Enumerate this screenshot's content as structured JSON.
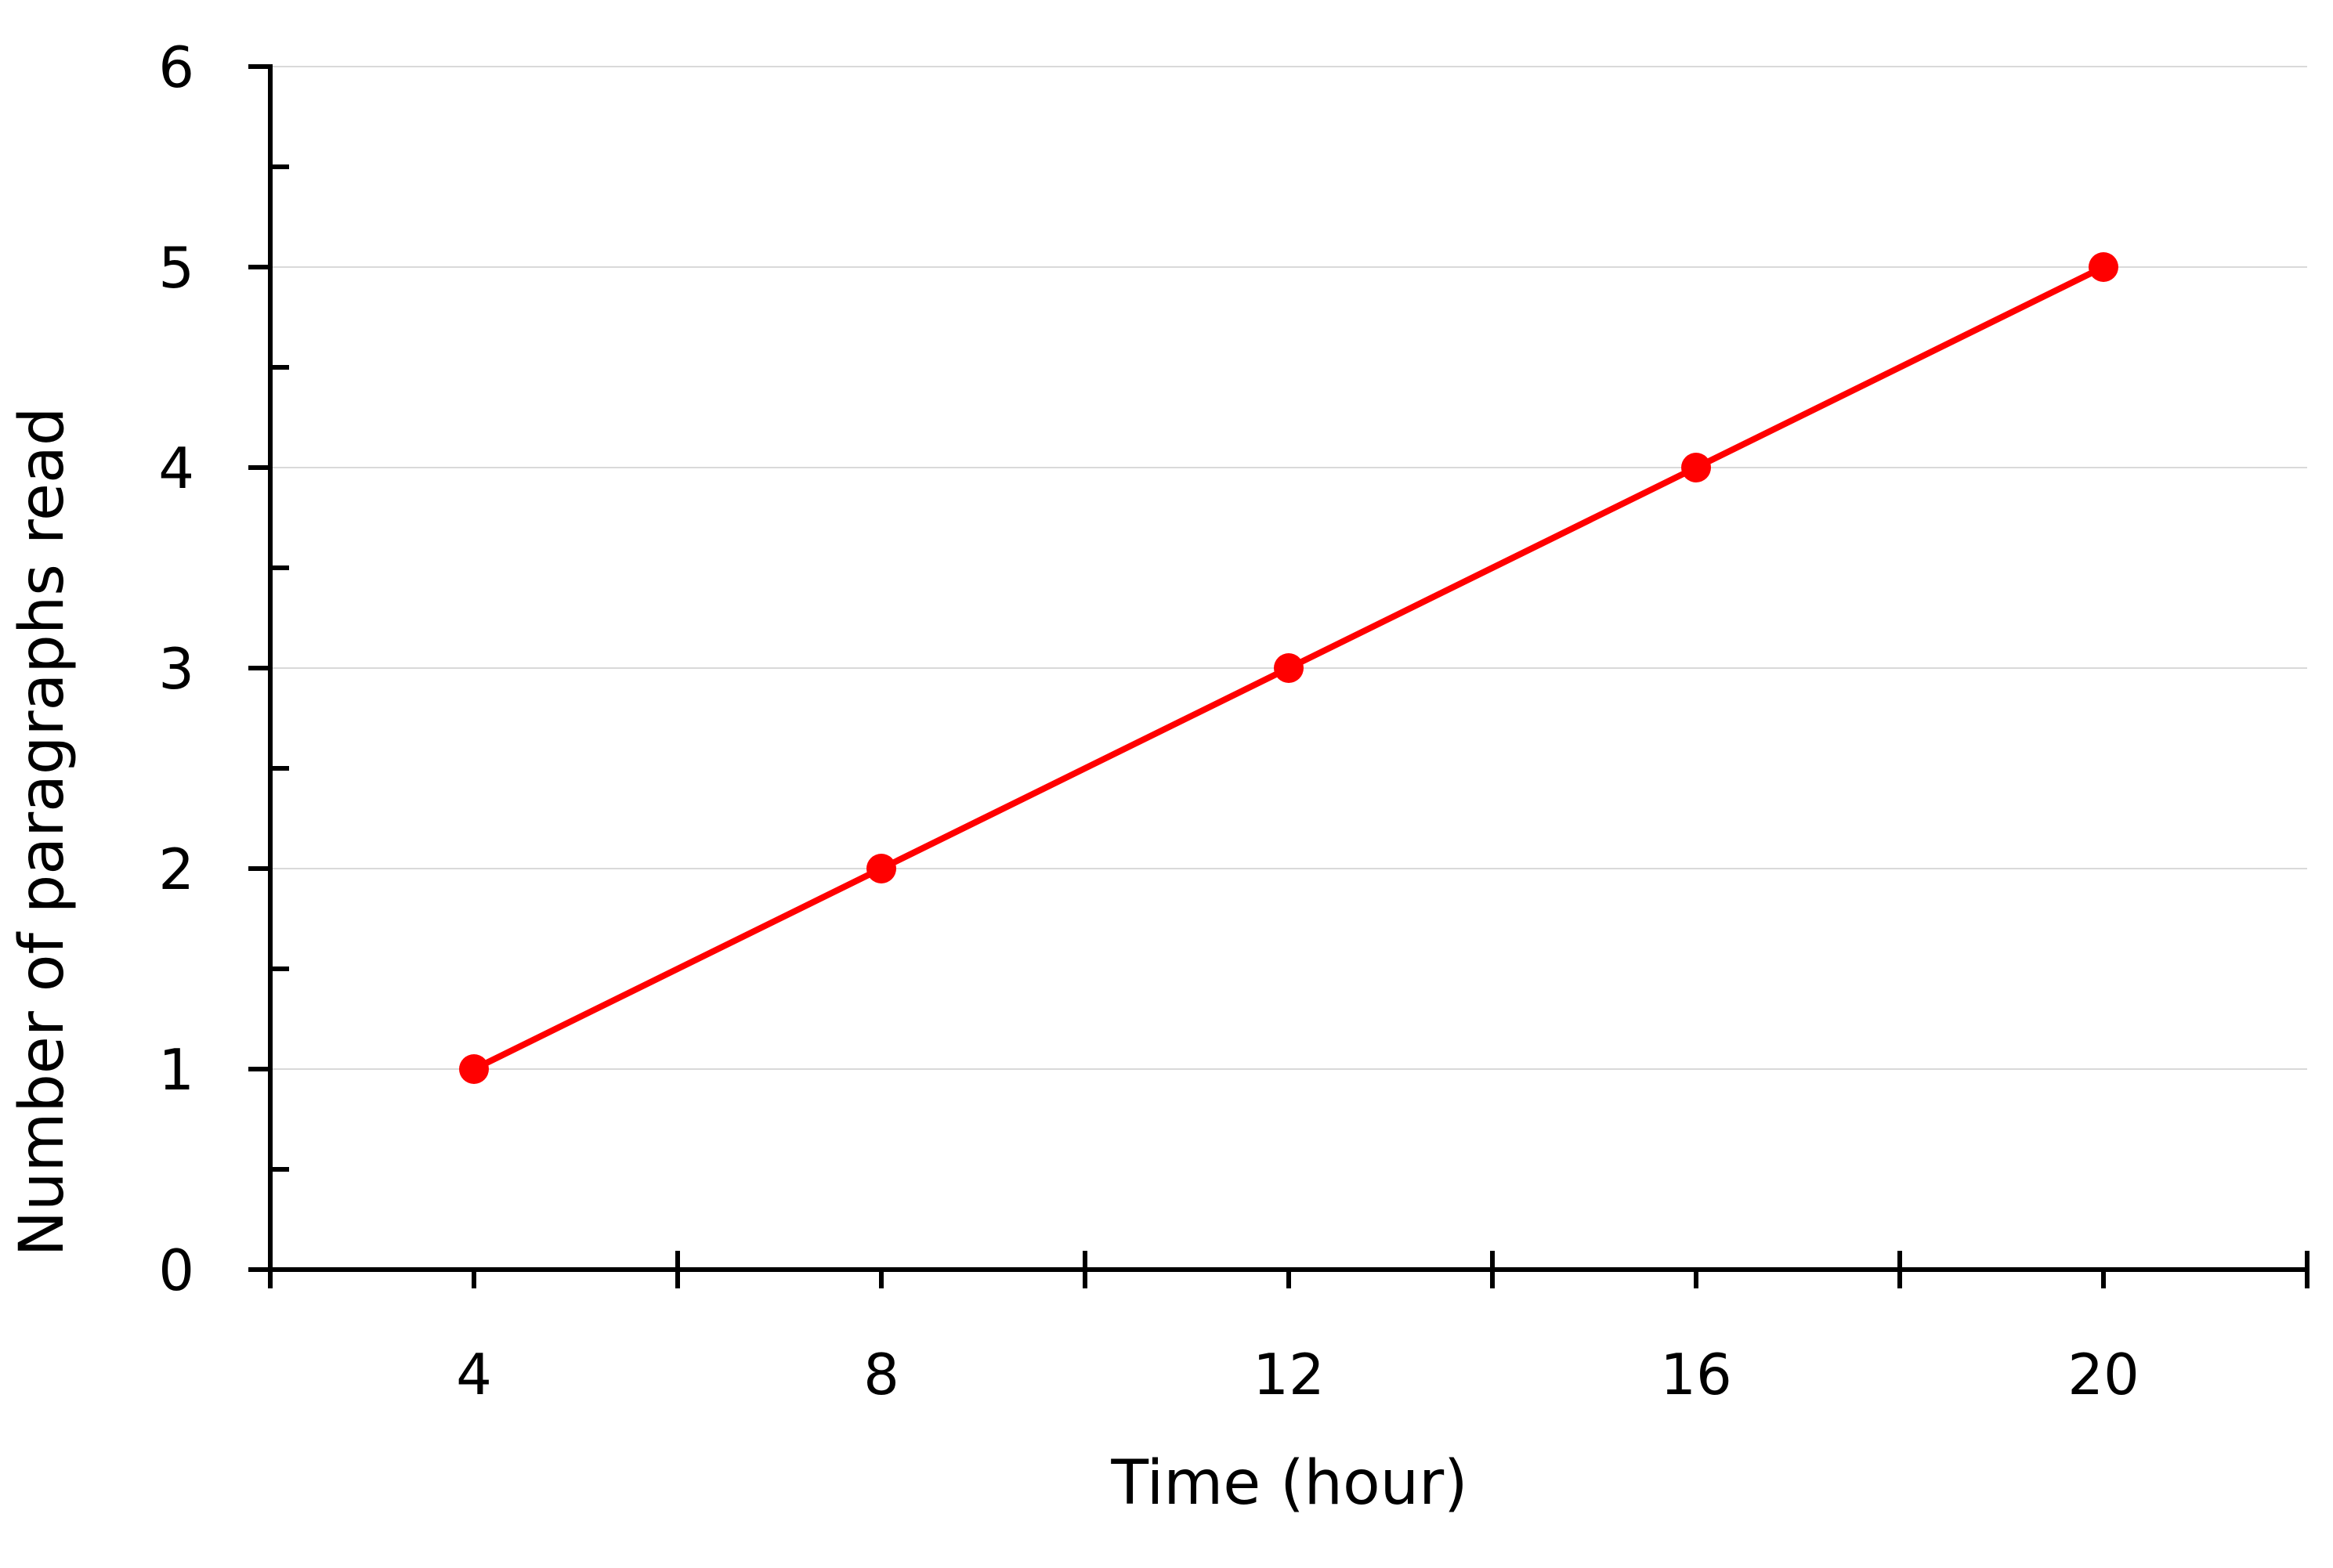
{
  "chart_data": {
    "type": "line",
    "title": "",
    "xlabel": "Time (hour)",
    "ylabel": "Number of paragraphs read",
    "xlim": [
      2,
      22
    ],
    "ylim": [
      0,
      6
    ],
    "xticks": [
      4,
      8,
      12,
      16,
      20
    ],
    "yticks": [
      0,
      1,
      2,
      3,
      4,
      5,
      6
    ],
    "x_minor_ticks": [
      2,
      6,
      10,
      14,
      18,
      22
    ],
    "y_minor_ticks": [
      0.5,
      1.5,
      2.5,
      3.5,
      4.5,
      5.5
    ],
    "grid": {
      "horizontal": true,
      "vertical": false
    },
    "x": [
      4,
      8,
      12,
      16,
      20
    ],
    "series": [
      {
        "values": [
          1,
          2,
          3,
          4,
          5
        ]
      }
    ],
    "colors": {
      "series": "#ff0000",
      "grid": "#d9d9d9",
      "axis": "#000000"
    }
  }
}
